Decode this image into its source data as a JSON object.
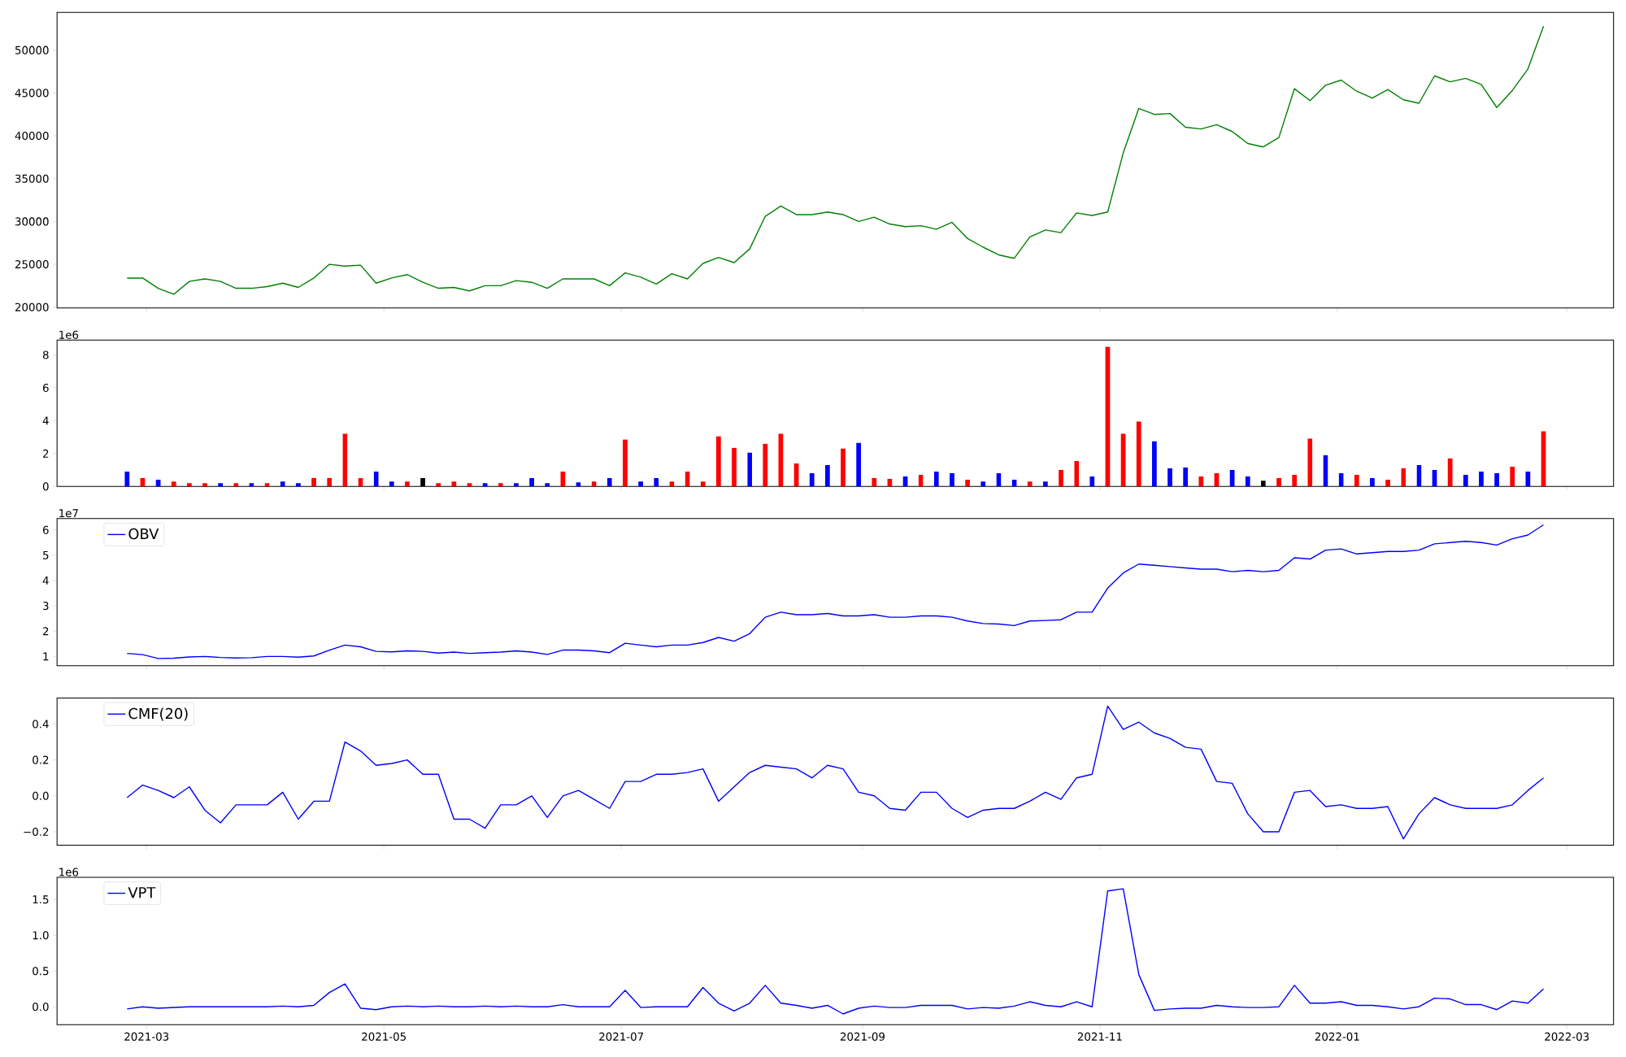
{
  "chart_data": [
    {
      "type": "line",
      "x": [
        "2021-02-24",
        "2021-02-28",
        "2021-03-04",
        "2021-03-08",
        "2021-03-12",
        "2021-03-16",
        "2021-03-20",
        "2021-03-24",
        "2021-03-28",
        "2021-04-01",
        "2021-04-05",
        "2021-04-09",
        "2021-04-13",
        "2021-04-17",
        "2021-04-21",
        "2021-04-25",
        "2021-04-29",
        "2021-05-03",
        "2021-05-07",
        "2021-05-11",
        "2021-05-15",
        "2021-05-19",
        "2021-05-23",
        "2021-05-27",
        "2021-05-31",
        "2021-06-04",
        "2021-06-08",
        "2021-06-12",
        "2021-06-16",
        "2021-06-20",
        "2021-06-24",
        "2021-06-28",
        "2021-07-02",
        "2021-07-06",
        "2021-07-10",
        "2021-07-14",
        "2021-07-18",
        "2021-07-22",
        "2021-07-26",
        "2021-07-30",
        "2021-08-03",
        "2021-08-07",
        "2021-08-11",
        "2021-08-15",
        "2021-08-19",
        "2021-08-23",
        "2021-08-27",
        "2021-08-31",
        "2021-09-04",
        "2021-09-08",
        "2021-09-12",
        "2021-09-16",
        "2021-09-20",
        "2021-09-24",
        "2021-09-28",
        "2021-10-02",
        "2021-10-06",
        "2021-10-10",
        "2021-10-14",
        "2021-10-18",
        "2021-10-22",
        "2021-10-26",
        "2021-10-30",
        "2021-11-03",
        "2021-11-07",
        "2021-11-11",
        "2021-11-15",
        "2021-11-19",
        "2021-11-23",
        "2021-11-27",
        "2021-12-01",
        "2021-12-05",
        "2021-12-09",
        "2021-12-13",
        "2021-12-17",
        "2021-12-21",
        "2021-12-25",
        "2021-12-29",
        "2022-01-02",
        "2022-01-06",
        "2022-01-10",
        "2022-01-14",
        "2022-01-18",
        "2022-01-22",
        "2022-01-26",
        "2022-01-30",
        "2022-02-03",
        "2022-02-07",
        "2022-02-11",
        "2022-02-15",
        "2022-02-19",
        "2022-02-23"
      ],
      "series": [
        {
          "color": "#008000",
          "values": [
            23400,
            23400,
            22200,
            21500,
            23000,
            23300,
            23000,
            22200,
            22200,
            22400,
            22800,
            22300,
            23400,
            25000,
            24800,
            24900,
            22800,
            23400,
            23800,
            22900,
            22200,
            22300,
            21900,
            22500,
            22500,
            23100,
            22900,
            22200,
            23300,
            23300,
            23300,
            22500,
            24000,
            23500,
            22700,
            23900,
            23300,
            25100,
            25800,
            25200,
            26800,
            30600,
            31800,
            30800,
            30800,
            31100,
            30800,
            30000,
            30500,
            29700,
            29400,
            29500,
            29100,
            29900,
            28000,
            27000,
            26100,
            25700,
            28200,
            29000,
            28700,
            31000,
            30700,
            31100,
            38000,
            43200,
            42500,
            42600,
            41000,
            40800,
            41300,
            40500,
            39100,
            38700,
            39800,
            45500,
            44100,
            45900,
            46500,
            45200,
            44400,
            45400,
            44200,
            43800,
            47000,
            46300,
            46700,
            46000,
            43300,
            45300,
            47800,
            52800
          ]
        }
      ],
      "xlim": [
        "2021-02-06",
        "2022-03-13"
      ],
      "xticks": [
        {
          "value": "2021-03-01",
          "label": null
        },
        {
          "value": "2021-05-01",
          "label": null
        },
        {
          "value": "2021-07-01",
          "label": null
        },
        {
          "value": "2021-09-01",
          "label": null
        },
        {
          "value": "2021-11-01",
          "label": null
        },
        {
          "value": "2022-01-01",
          "label": null
        },
        {
          "value": "2022-03-01",
          "label": null
        }
      ],
      "ylim": [
        19900,
        54400
      ],
      "yticks": [
        20000,
        25000,
        30000,
        35000,
        40000,
        45000,
        50000
      ],
      "tick_labels": "y"
    },
    {
      "type": "bar",
      "x": [
        "2021-02-24",
        "2021-02-28",
        "2021-03-04",
        "2021-03-08",
        "2021-03-12",
        "2021-03-16",
        "2021-03-20",
        "2021-03-24",
        "2021-03-28",
        "2021-04-01",
        "2021-04-05",
        "2021-04-09",
        "2021-04-13",
        "2021-04-17",
        "2021-04-21",
        "2021-04-25",
        "2021-04-29",
        "2021-05-03",
        "2021-05-07",
        "2021-05-11",
        "2021-05-15",
        "2021-05-19",
        "2021-05-23",
        "2021-05-27",
        "2021-05-31",
        "2021-06-04",
        "2021-06-08",
        "2021-06-12",
        "2021-06-16",
        "2021-06-20",
        "2021-06-24",
        "2021-06-28",
        "2021-07-02",
        "2021-07-06",
        "2021-07-10",
        "2021-07-14",
        "2021-07-18",
        "2021-07-22",
        "2021-07-26",
        "2021-07-30",
        "2021-08-03",
        "2021-08-07",
        "2021-08-11",
        "2021-08-15",
        "2021-08-19",
        "2021-08-23",
        "2021-08-27",
        "2021-08-31",
        "2021-09-04",
        "2021-09-08",
        "2021-09-12",
        "2021-09-16",
        "2021-09-20",
        "2021-09-24",
        "2021-09-28",
        "2021-10-02",
        "2021-10-06",
        "2021-10-10",
        "2021-10-14",
        "2021-10-18",
        "2021-10-22",
        "2021-10-26",
        "2021-10-30",
        "2021-11-03",
        "2021-11-07",
        "2021-11-11",
        "2021-11-15",
        "2021-11-19",
        "2021-11-23",
        "2021-11-27",
        "2021-12-01",
        "2021-12-05",
        "2021-12-09",
        "2021-12-13",
        "2021-12-17",
        "2021-12-21",
        "2021-12-25",
        "2021-12-29",
        "2022-01-02",
        "2022-01-06",
        "2022-01-10",
        "2022-01-14",
        "2022-01-18",
        "2022-01-22",
        "2022-01-26",
        "2022-01-30",
        "2022-02-03",
        "2022-02-07",
        "2022-02-11",
        "2022-02-15",
        "2022-02-19",
        "2022-02-23"
      ],
      "values": [
        0.9,
        0.5,
        0.4,
        0.3,
        0.2,
        0.2,
        0.2,
        0.2,
        0.2,
        0.2,
        0.3,
        0.2,
        0.5,
        0.5,
        3.2,
        0.5,
        0.9,
        0.3,
        0.3,
        0.5,
        0.2,
        0.3,
        0.2,
        0.2,
        0.2,
        0.2,
        0.5,
        0.2,
        0.9,
        0.25,
        0.3,
        0.5,
        2.85,
        0.3,
        0.5,
        0.3,
        0.9,
        0.3,
        3.05,
        2.35,
        2.05,
        2.6,
        3.2,
        1.4,
        0.8,
        1.3,
        2.3,
        2.65,
        0.5,
        0.45,
        0.6,
        0.7,
        0.9,
        0.8,
        0.4,
        0.3,
        0.8,
        0.4,
        0.3,
        0.3,
        1.0,
        1.55,
        0.6,
        8.5,
        3.2,
        3.95,
        2.75,
        1.1,
        1.15,
        0.6,
        0.8,
        1.0,
        0.6,
        0.35,
        0.5,
        0.7,
        2.9,
        1.9,
        0.8,
        0.7,
        0.5,
        0.4,
        1.1,
        1.3,
        1.0,
        1.7,
        0.7,
        0.9,
        0.8,
        1.2,
        0.9,
        3.35
      ],
      "colors": [
        "#0000ff",
        "#ff0000",
        "#0000ff",
        "#ff0000",
        "#ff0000",
        "#ff0000",
        "#0000ff",
        "#ff0000",
        "#0000ff",
        "#ff0000",
        "#0000ff",
        "#0000ff",
        "#ff0000",
        "#ff0000",
        "#ff0000",
        "#ff0000",
        "#0000ff",
        "#0000ff",
        "#ff0000",
        "#000000",
        "#ff0000",
        "#ff0000",
        "#ff0000",
        "#0000ff",
        "#ff0000",
        "#0000ff",
        "#0000ff",
        "#0000ff",
        "#ff0000",
        "#0000ff",
        "#ff0000",
        "#0000ff",
        "#ff0000",
        "#0000ff",
        "#0000ff",
        "#ff0000",
        "#ff0000",
        "#ff0000",
        "#ff0000",
        "#ff0000",
        "#0000ff",
        "#ff0000",
        "#ff0000",
        "#ff0000",
        "#0000ff",
        "#0000ff",
        "#ff0000",
        "#0000ff",
        "#ff0000",
        "#ff0000",
        "#0000ff",
        "#ff0000",
        "#0000ff",
        "#0000ff",
        "#ff0000",
        "#0000ff",
        "#0000ff",
        "#0000ff",
        "#ff0000",
        "#0000ff",
        "#ff0000",
        "#ff0000",
        "#0000ff",
        "#ff0000",
        "#ff0000",
        "#ff0000",
        "#0000ff",
        "#0000ff",
        "#0000ff",
        "#ff0000",
        "#ff0000",
        "#0000ff",
        "#0000ff",
        "#000000",
        "#ff0000",
        "#ff0000",
        "#ff0000",
        "#0000ff",
        "#0000ff",
        "#ff0000",
        "#0000ff",
        "#ff0000",
        "#ff0000",
        "#0000ff",
        "#0000ff",
        "#ff0000",
        "#0000ff",
        "#0000ff",
        "#0000ff",
        "#ff0000",
        "#0000ff",
        "#ff0000"
      ],
      "xlim": [
        "2021-02-06",
        "2022-03-13"
      ],
      "xticks": [
        {
          "value": "2021-03-01",
          "label": null
        },
        {
          "value": "2021-05-01",
          "label": null
        },
        {
          "value": "2021-07-01",
          "label": null
        },
        {
          "value": "2021-09-01",
          "label": null
        },
        {
          "value": "2021-11-01",
          "label": null
        },
        {
          "value": "2022-01-01",
          "label": null
        },
        {
          "value": "2022-03-01",
          "label": null
        }
      ],
      "ylim": [
        0,
        8.9
      ],
      "yticks": [
        0,
        2,
        4,
        6,
        8
      ],
      "annotations": [
        "1e6"
      ],
      "tick_labels": "y"
    },
    {
      "type": "line",
      "x": [
        "2021-02-24",
        "2021-02-28",
        "2021-03-04",
        "2021-03-08",
        "2021-03-12",
        "2021-03-16",
        "2021-03-20",
        "2021-03-24",
        "2021-03-28",
        "2021-04-01",
        "2021-04-05",
        "2021-04-09",
        "2021-04-13",
        "2021-04-17",
        "2021-04-21",
        "2021-04-25",
        "2021-04-29",
        "2021-05-03",
        "2021-05-07",
        "2021-05-11",
        "2021-05-15",
        "2021-05-19",
        "2021-05-23",
        "2021-05-27",
        "2021-05-31",
        "2021-06-04",
        "2021-06-08",
        "2021-06-12",
        "2021-06-16",
        "2021-06-20",
        "2021-06-24",
        "2021-06-28",
        "2021-07-02",
        "2021-07-06",
        "2021-07-10",
        "2021-07-14",
        "2021-07-18",
        "2021-07-22",
        "2021-07-26",
        "2021-07-30",
        "2021-08-03",
        "2021-08-07",
        "2021-08-11",
        "2021-08-15",
        "2021-08-19",
        "2021-08-23",
        "2021-08-27",
        "2021-08-31",
        "2021-09-04",
        "2021-09-08",
        "2021-09-12",
        "2021-09-16",
        "2021-09-20",
        "2021-09-24",
        "2021-09-28",
        "2021-10-02",
        "2021-10-06",
        "2021-10-10",
        "2021-10-14",
        "2021-10-18",
        "2021-10-22",
        "2021-10-26",
        "2021-10-30",
        "2021-11-03",
        "2021-11-07",
        "2021-11-11",
        "2021-11-15",
        "2021-11-19",
        "2021-11-23",
        "2021-11-27",
        "2021-12-01",
        "2021-12-05",
        "2021-12-09",
        "2021-12-13",
        "2021-12-17",
        "2021-12-21",
        "2021-12-25",
        "2021-12-29",
        "2022-01-02",
        "2022-01-06",
        "2022-01-10",
        "2022-01-14",
        "2022-01-18",
        "2022-01-22",
        "2022-01-26",
        "2022-01-30",
        "2022-02-03",
        "2022-02-07",
        "2022-02-11",
        "2022-02-15",
        "2022-02-19",
        "2022-02-23"
      ],
      "series": [
        {
          "name": "OBV",
          "color": "#0000ff",
          "values": [
            1.12,
            1.07,
            0.92,
            0.93,
            0.98,
            1.0,
            0.96,
            0.94,
            0.95,
            1.0,
            1.0,
            0.97,
            1.02,
            1.25,
            1.45,
            1.38,
            1.2,
            1.18,
            1.22,
            1.2,
            1.13,
            1.17,
            1.12,
            1.15,
            1.17,
            1.22,
            1.17,
            1.08,
            1.25,
            1.25,
            1.22,
            1.15,
            1.52,
            1.45,
            1.38,
            1.45,
            1.45,
            1.55,
            1.75,
            1.6,
            1.9,
            2.55,
            2.75,
            2.65,
            2.65,
            2.7,
            2.6,
            2.6,
            2.65,
            2.55,
            2.55,
            2.6,
            2.6,
            2.55,
            2.4,
            2.3,
            2.28,
            2.22,
            2.4,
            2.42,
            2.45,
            2.75,
            2.75,
            3.7,
            4.3,
            4.65,
            4.6,
            4.55,
            4.5,
            4.45,
            4.45,
            4.35,
            4.4,
            4.35,
            4.4,
            4.9,
            4.85,
            5.2,
            5.25,
            5.05,
            5.1,
            5.15,
            5.15,
            5.2,
            5.45,
            5.5,
            5.55,
            5.5,
            5.4,
            5.65,
            5.8,
            6.2
          ]
        }
      ],
      "xlim": [
        "2021-02-06",
        "2022-03-13"
      ],
      "xticks": [
        {
          "value": "2021-03-01",
          "label": null
        },
        {
          "value": "2021-05-01",
          "label": null
        },
        {
          "value": "2021-07-01",
          "label": null
        },
        {
          "value": "2021-09-01",
          "label": null
        },
        {
          "value": "2021-11-01",
          "label": null
        },
        {
          "value": "2022-01-01",
          "label": null
        },
        {
          "value": "2022-03-01",
          "label": null
        }
      ],
      "ylim": [
        0.63,
        6.45
      ],
      "yticks": [
        1,
        2,
        3,
        4,
        5,
        6
      ],
      "annotations": [
        "1e7"
      ],
      "legend": "top left",
      "tick_labels": "y"
    },
    {
      "type": "line",
      "x": [
        "2021-02-24",
        "2021-02-28",
        "2021-03-04",
        "2021-03-08",
        "2021-03-12",
        "2021-03-16",
        "2021-03-20",
        "2021-03-24",
        "2021-03-28",
        "2021-04-01",
        "2021-04-05",
        "2021-04-09",
        "2021-04-13",
        "2021-04-17",
        "2021-04-21",
        "2021-04-25",
        "2021-04-29",
        "2021-05-03",
        "2021-05-07",
        "2021-05-11",
        "2021-05-15",
        "2021-05-19",
        "2021-05-23",
        "2021-05-27",
        "2021-05-31",
        "2021-06-04",
        "2021-06-08",
        "2021-06-12",
        "2021-06-16",
        "2021-06-20",
        "2021-06-24",
        "2021-06-28",
        "2021-07-02",
        "2021-07-06",
        "2021-07-10",
        "2021-07-14",
        "2021-07-18",
        "2021-07-22",
        "2021-07-26",
        "2021-07-30",
        "2021-08-03",
        "2021-08-07",
        "2021-08-11",
        "2021-08-15",
        "2021-08-19",
        "2021-08-23",
        "2021-08-27",
        "2021-08-31",
        "2021-09-04",
        "2021-09-08",
        "2021-09-12",
        "2021-09-16",
        "2021-09-20",
        "2021-09-24",
        "2021-09-28",
        "2021-10-02",
        "2021-10-06",
        "2021-10-10",
        "2021-10-14",
        "2021-10-18",
        "2021-10-22",
        "2021-10-26",
        "2021-10-30",
        "2021-11-03",
        "2021-11-07",
        "2021-11-11",
        "2021-11-15",
        "2021-11-19",
        "2021-11-23",
        "2021-11-27",
        "2021-12-01",
        "2021-12-05",
        "2021-12-09",
        "2021-12-13",
        "2021-12-17",
        "2021-12-21",
        "2021-12-25",
        "2021-12-29",
        "2022-01-02",
        "2022-01-06",
        "2022-01-10",
        "2022-01-14",
        "2022-01-18",
        "2022-01-22",
        "2022-01-26",
        "2022-01-30",
        "2022-02-03",
        "2022-02-07",
        "2022-02-11",
        "2022-02-15",
        "2022-02-19",
        "2022-02-23"
      ],
      "series": [
        {
          "name": "CMF(20)",
          "color": "#0000ff",
          "values": [
            -0.01,
            0.06,
            0.03,
            -0.01,
            0.05,
            -0.08,
            -0.15,
            -0.05,
            -0.05,
            -0.05,
            0.02,
            -0.13,
            -0.03,
            -0.03,
            0.3,
            0.25,
            0.17,
            0.18,
            0.2,
            0.12,
            0.12,
            -0.13,
            -0.13,
            -0.18,
            -0.05,
            -0.05,
            0.0,
            -0.12,
            0.0,
            0.03,
            -0.02,
            -0.07,
            0.08,
            0.08,
            0.12,
            0.12,
            0.13,
            0.15,
            -0.03,
            0.05,
            0.13,
            0.17,
            0.16,
            0.15,
            0.1,
            0.17,
            0.15,
            0.02,
            0.0,
            -0.07,
            -0.08,
            0.02,
            0.02,
            -0.07,
            -0.12,
            -0.08,
            -0.07,
            -0.07,
            -0.03,
            0.02,
            -0.02,
            0.1,
            0.12,
            0.5,
            0.37,
            0.41,
            0.35,
            0.32,
            0.27,
            0.26,
            0.08,
            0.07,
            -0.1,
            -0.2,
            -0.2,
            0.02,
            0.03,
            -0.06,
            -0.05,
            -0.07,
            -0.07,
            -0.06,
            -0.24,
            -0.1,
            -0.01,
            -0.05,
            -0.07,
            -0.07,
            -0.07,
            -0.05,
            0.03,
            0.1
          ]
        }
      ],
      "xlim": [
        "2021-02-06",
        "2022-03-13"
      ],
      "xticks": [
        {
          "value": "2021-03-01",
          "label": null
        },
        {
          "value": "2021-05-01",
          "label": null
        },
        {
          "value": "2021-07-01",
          "label": null
        },
        {
          "value": "2021-09-01",
          "label": null
        },
        {
          "value": "2021-11-01",
          "label": null
        },
        {
          "value": "2022-01-01",
          "label": null
        },
        {
          "value": "2022-03-01",
          "label": null
        }
      ],
      "ylim": [
        -0.275,
        0.545
      ],
      "yticks": [
        {
          "value": -0.2,
          "label": "−0.2"
        },
        {
          "value": 0,
          "label": "0.0"
        },
        0.2,
        0.4
      ],
      "legend": "top left",
      "tick_labels": "y"
    },
    {
      "type": "line",
      "x": [
        "2021-02-24",
        "2021-02-28",
        "2021-03-04",
        "2021-03-08",
        "2021-03-12",
        "2021-03-16",
        "2021-03-20",
        "2021-03-24",
        "2021-03-28",
        "2021-04-01",
        "2021-04-05",
        "2021-04-09",
        "2021-04-13",
        "2021-04-17",
        "2021-04-21",
        "2021-04-25",
        "2021-04-29",
        "2021-05-03",
        "2021-05-07",
        "2021-05-11",
        "2021-05-15",
        "2021-05-19",
        "2021-05-23",
        "2021-05-27",
        "2021-05-31",
        "2021-06-04",
        "2021-06-08",
        "2021-06-12",
        "2021-06-16",
        "2021-06-20",
        "2021-06-24",
        "2021-06-28",
        "2021-07-02",
        "2021-07-06",
        "2021-07-10",
        "2021-07-14",
        "2021-07-18",
        "2021-07-22",
        "2021-07-26",
        "2021-07-30",
        "2021-08-03",
        "2021-08-07",
        "2021-08-11",
        "2021-08-15",
        "2021-08-19",
        "2021-08-23",
        "2021-08-27",
        "2021-08-31",
        "2021-09-04",
        "2021-09-08",
        "2021-09-12",
        "2021-09-16",
        "2021-09-20",
        "2021-09-24",
        "2021-09-28",
        "2021-10-02",
        "2021-10-06",
        "2021-10-10",
        "2021-10-14",
        "2021-10-18",
        "2021-10-22",
        "2021-10-26",
        "2021-10-30",
        "2021-11-03",
        "2021-11-07",
        "2021-11-11",
        "2021-11-15",
        "2021-11-19",
        "2021-11-23",
        "2021-11-27",
        "2021-12-01",
        "2021-12-05",
        "2021-12-09",
        "2021-12-13",
        "2021-12-17",
        "2021-12-21",
        "2021-12-25",
        "2021-12-29",
        "2022-01-02",
        "2022-01-06",
        "2022-01-10",
        "2022-01-14",
        "2022-01-18",
        "2022-01-22",
        "2022-01-26",
        "2022-01-30",
        "2022-02-03",
        "2022-02-07",
        "2022-02-11",
        "2022-02-15",
        "2022-02-19",
        "2022-02-23"
      ],
      "series": [
        {
          "name": "VPT",
          "color": "#0000ff",
          "values": [
            -0.03,
            0,
            -0.02,
            -0.01,
            0,
            0,
            0,
            0,
            0,
            0,
            0.01,
            0,
            0.02,
            0.2,
            0.32,
            -0.02,
            -0.04,
            0,
            0.01,
            0,
            0.01,
            0,
            0,
            0.01,
            0,
            0.01,
            0,
            0,
            0.03,
            0,
            0,
            0,
            0.23,
            -0.01,
            0,
            0,
            0,
            0.27,
            0.05,
            -0.06,
            0.05,
            0.3,
            0.05,
            0.02,
            -0.02,
            0.02,
            -0.1,
            -0.02,
            0.01,
            -0.01,
            -0.01,
            0.02,
            0.02,
            0.02,
            -0.03,
            -0.01,
            -0.02,
            0.01,
            0.07,
            0.02,
            0,
            0.07,
            0,
            1.62,
            1.65,
            0.45,
            -0.05,
            -0.03,
            -0.02,
            -0.02,
            0.02,
            0,
            -0.01,
            -0.01,
            0,
            0.3,
            0.05,
            0.05,
            0.07,
            0.02,
            0.02,
            0,
            -0.03,
            0,
            0.12,
            0.11,
            0.03,
            0.03,
            -0.04,
            0.08,
            0.05,
            0.25
          ]
        }
      ],
      "xlim": [
        "2021-02-06",
        "2022-03-13"
      ],
      "xticks": [
        {
          "value": "2021-03-01",
          "label": "2021-03"
        },
        {
          "value": "2021-05-01",
          "label": "2021-05"
        },
        {
          "value": "2021-07-01",
          "label": "2021-07"
        },
        {
          "value": "2021-09-01",
          "label": "2021-09"
        },
        {
          "value": "2021-11-01",
          "label": "2021-11"
        },
        {
          "value": "2022-01-01",
          "label": "2022-01"
        },
        {
          "value": "2022-03-01",
          "label": "2022-03"
        }
      ],
      "ylim": [
        -0.25,
        1.81
      ],
      "yticks": [
        {
          "value": 0,
          "label": "0.0"
        },
        0.5,
        {
          "value": 1,
          "label": "1.0"
        },
        1.5
      ],
      "annotations": [
        "1e6"
      ],
      "legend": "top left"
    }
  ]
}
